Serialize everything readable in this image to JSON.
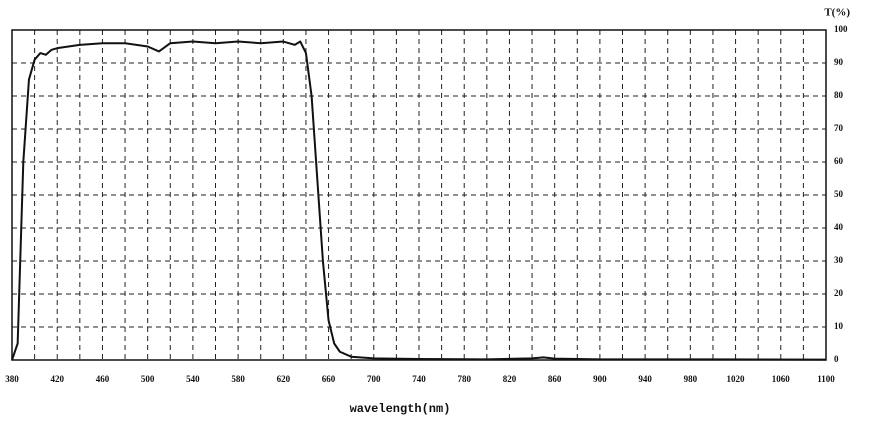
{
  "chart_data": {
    "type": "line",
    "xlabel": "wavelength(nm)",
    "ylabel": "T(%)",
    "x": [
      380,
      385,
      390,
      395,
      400,
      405,
      410,
      415,
      420,
      430,
      440,
      460,
      480,
      500,
      510,
      520,
      540,
      560,
      580,
      600,
      620,
      630,
      635,
      640,
      645,
      650,
      655,
      660,
      665,
      670,
      680,
      700,
      740,
      800,
      840,
      850,
      860,
      900,
      1000,
      1100
    ],
    "series": [
      {
        "name": "T",
        "color": "#111111",
        "values": [
          0,
          5,
          60,
          85,
          91,
          93,
          92.5,
          94,
          94.5,
          95,
          95.5,
          96,
          96,
          95,
          93.5,
          96,
          96.5,
          96,
          96.5,
          96,
          96.5,
          95.5,
          96.5,
          93,
          80,
          55,
          30,
          12,
          5,
          2.5,
          1,
          0.5,
          0.3,
          0.2,
          0.5,
          0.8,
          0.4,
          0.2,
          0.2,
          0.1
        ]
      }
    ],
    "xlim": [
      380,
      1100
    ],
    "xticks": [
      380,
      420,
      460,
      500,
      540,
      580,
      620,
      660,
      700,
      740,
      780,
      820,
      860,
      900,
      940,
      980,
      1020,
      1060,
      1100
    ],
    "xgrid": [
      400,
      420,
      440,
      460,
      480,
      500,
      520,
      540,
      560,
      580,
      600,
      620,
      640,
      660,
      680,
      700,
      720,
      740,
      760,
      780,
      800,
      820,
      840,
      860,
      880,
      900,
      920,
      940,
      960,
      980,
      1000,
      1020,
      1040,
      1060,
      1080
    ],
    "ylim": [
      0,
      100
    ],
    "yticks": [
      0,
      10,
      20,
      30,
      40,
      50,
      60,
      70,
      80,
      90,
      100
    ],
    "grid": true
  }
}
